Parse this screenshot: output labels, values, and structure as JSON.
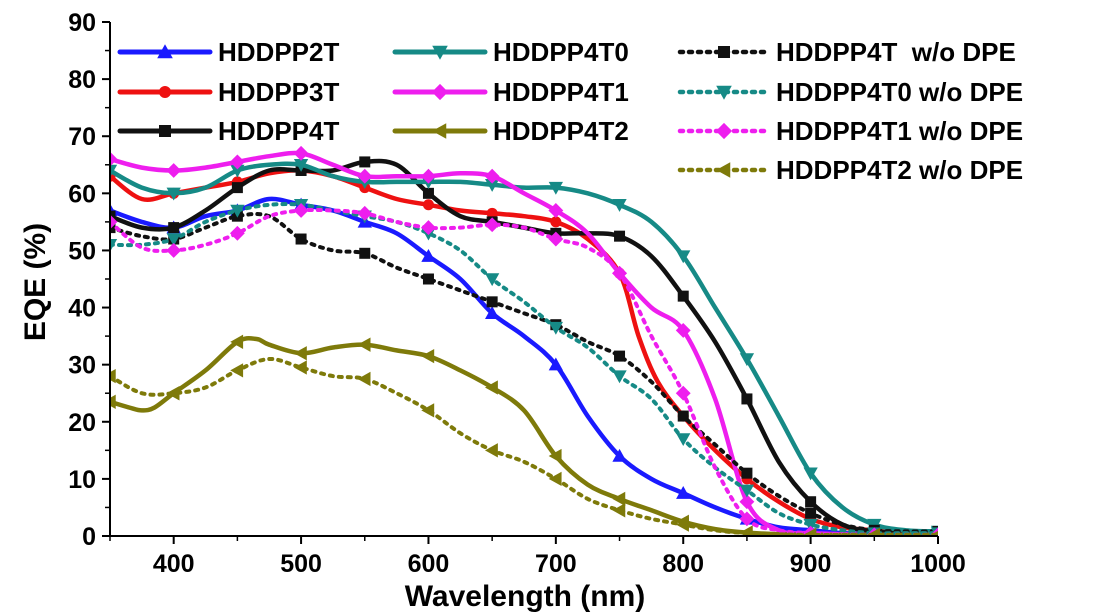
{
  "chart_data": {
    "type": "line",
    "xlabel": "Wavelength (nm)",
    "ylabel": "EQE (%)",
    "xlim": [
      350,
      1000
    ],
    "ylim": [
      0,
      90
    ],
    "xticks": [
      400,
      500,
      600,
      700,
      800,
      900,
      1000
    ],
    "yticks": [
      0,
      10,
      20,
      30,
      40,
      50,
      60,
      70,
      80,
      90
    ],
    "legend_position": "top",
    "series": [
      {
        "name": "HDDPP2T",
        "color": "#1a1aff",
        "marker": "triangle-up",
        "dash": "solid",
        "x": [
          350,
          375,
          400,
          425,
          450,
          475,
          500,
          525,
          550,
          575,
          600,
          625,
          650,
          675,
          700,
          725,
          750,
          775,
          800,
          825,
          850,
          875,
          900,
          925,
          950,
          975,
          1000
        ],
        "y": [
          57,
          55,
          54,
          56,
          57,
          59,
          58,
          57,
          55,
          53,
          49,
          45,
          39,
          35,
          30,
          21,
          14,
          10,
          7.5,
          5,
          3,
          1.5,
          1,
          0.5,
          0.3,
          0.2,
          0.2
        ]
      },
      {
        "name": "HDDPP3T",
        "color": "#ee1111",
        "marker": "circle",
        "dash": "solid",
        "x": [
          350,
          375,
          400,
          425,
          450,
          475,
          500,
          525,
          550,
          575,
          600,
          625,
          650,
          675,
          700,
          725,
          750,
          765,
          780,
          800,
          825,
          850,
          875,
          900,
          925,
          950,
          975,
          1000
        ],
        "y": [
          63,
          59,
          60,
          61,
          62,
          63.5,
          64,
          63,
          61,
          59,
          58,
          57,
          56.5,
          56,
          55,
          52,
          46,
          35,
          27,
          21,
          15,
          10,
          6,
          3,
          1.5,
          1,
          0.5,
          0.5
        ]
      },
      {
        "name": "HDDPP4T",
        "color": "#111111",
        "marker": "square",
        "dash": "solid",
        "x": [
          350,
          375,
          400,
          425,
          450,
          475,
          500,
          525,
          550,
          575,
          600,
          625,
          650,
          675,
          700,
          725,
          750,
          775,
          800,
          825,
          850,
          875,
          900,
          925,
          950,
          975,
          1000
        ],
        "y": [
          56,
          54,
          54,
          57,
          61,
          64,
          64,
          64,
          65.5,
          65,
          60,
          56,
          55,
          54,
          53,
          53,
          52.5,
          49,
          42,
          34,
          24,
          13,
          6,
          2,
          0.8,
          0.5,
          0.5
        ]
      },
      {
        "name": "HDDPP4T0",
        "color": "#168a86",
        "marker": "triangle-down",
        "dash": "solid",
        "x": [
          350,
          375,
          400,
          425,
          450,
          475,
          500,
          525,
          550,
          575,
          600,
          625,
          650,
          675,
          700,
          725,
          750,
          775,
          800,
          825,
          850,
          875,
          900,
          925,
          950,
          975,
          1000
        ],
        "y": [
          64,
          61,
          60,
          61,
          64,
          65,
          65,
          63,
          62,
          62,
          62,
          62,
          61.5,
          61,
          61,
          60,
          58,
          55,
          49,
          40,
          31,
          21,
          11,
          5,
          2,
          1,
          0.8
        ]
      },
      {
        "name": "HDDPP4T1",
        "color": "#ee1eee",
        "marker": "diamond",
        "dash": "solid",
        "x": [
          350,
          375,
          400,
          425,
          450,
          475,
          500,
          525,
          550,
          575,
          600,
          625,
          650,
          675,
          700,
          725,
          750,
          775,
          800,
          825,
          850,
          875,
          900,
          925,
          950,
          975,
          1000
        ],
        "y": [
          66,
          64.5,
          64,
          64.5,
          65.5,
          66.5,
          67,
          65,
          63,
          63,
          63,
          63.5,
          63,
          60,
          57,
          53,
          46,
          40,
          36,
          24,
          6,
          1,
          0.5,
          0.3,
          0.2,
          0.2,
          0.2
        ]
      },
      {
        "name": "HDDPP4T2",
        "color": "#7e7a0a",
        "marker": "triangle-left",
        "dash": "solid",
        "x": [
          350,
          365,
          375,
          385,
          400,
          425,
          450,
          465,
          475,
          500,
          525,
          550,
          575,
          600,
          625,
          650,
          675,
          700,
          725,
          750,
          775,
          800,
          825,
          850,
          875,
          900,
          925,
          950,
          975,
          1000
        ],
        "y": [
          23.5,
          22.5,
          22,
          22.5,
          25,
          29,
          34,
          34.5,
          33.5,
          32,
          33,
          33.5,
          32.5,
          31.5,
          29,
          26,
          22,
          14,
          9,
          6.5,
          4.5,
          2.5,
          1.2,
          0.6,
          0.3,
          0.2,
          0.2,
          0.2,
          0.2,
          0.2
        ]
      },
      {
        "name": "HDDPP4T  w/o DPE",
        "color": "#111111",
        "marker": "square",
        "dash": "dotted",
        "x": [
          350,
          375,
          400,
          425,
          450,
          475,
          500,
          525,
          550,
          575,
          600,
          625,
          650,
          675,
          700,
          725,
          750,
          775,
          800,
          825,
          850,
          875,
          900,
          925,
          950,
          975,
          1000
        ],
        "y": [
          54,
          52.5,
          52,
          54,
          56,
          56,
          52,
          50,
          49.5,
          47,
          45,
          43,
          41,
          39,
          37,
          34,
          31.5,
          27,
          21,
          16,
          11,
          7,
          4,
          2,
          1,
          0.8,
          0.8
        ]
      },
      {
        "name": "HDDPP4T0 w/o DPE",
        "color": "#168a86",
        "marker": "triangle-down",
        "dash": "dotted",
        "x": [
          350,
          375,
          400,
          425,
          450,
          475,
          500,
          525,
          550,
          575,
          600,
          625,
          650,
          675,
          700,
          725,
          750,
          775,
          800,
          825,
          850,
          875,
          900,
          925,
          950,
          975,
          1000
        ],
        "y": [
          51,
          51,
          52,
          55,
          57,
          58,
          58,
          57,
          56,
          55,
          53,
          50,
          45,
          41,
          36.5,
          33,
          28,
          24,
          17,
          12,
          8,
          4,
          2,
          1,
          0.5,
          0.5,
          0.5
        ]
      },
      {
        "name": "HDDPP4T1 w/o DPE",
        "color": "#ee1eee",
        "marker": "diamond",
        "dash": "dotted",
        "x": [
          350,
          375,
          400,
          425,
          450,
          475,
          500,
          525,
          550,
          575,
          600,
          625,
          650,
          675,
          700,
          725,
          750,
          775,
          800,
          825,
          850,
          875,
          900,
          925,
          950,
          975,
          1000
        ],
        "y": [
          55,
          50.5,
          50,
          51,
          53,
          56,
          57,
          57,
          56.5,
          55,
          54,
          54,
          54.5,
          54,
          52,
          50.5,
          46,
          35,
          25,
          12,
          3,
          1,
          0.5,
          0.3,
          0.2,
          0.2,
          0.2
        ]
      },
      {
        "name": "HDDPP4T2 w/o DPE",
        "color": "#7e7a0a",
        "marker": "triangle-left",
        "dash": "dotted",
        "x": [
          350,
          375,
          400,
          425,
          450,
          475,
          500,
          525,
          550,
          575,
          600,
          625,
          650,
          675,
          700,
          725,
          750,
          775,
          800,
          825,
          850,
          875,
          900,
          925,
          950,
          975,
          1000
        ],
        "y": [
          28,
          25,
          25,
          26,
          29,
          31,
          29.5,
          28,
          27.5,
          25,
          22,
          18,
          15,
          13,
          10,
          6.5,
          4.5,
          3,
          2,
          1,
          0.5,
          0.3,
          0.2,
          0.2,
          0.2,
          0.2,
          0.2
        ]
      }
    ]
  }
}
